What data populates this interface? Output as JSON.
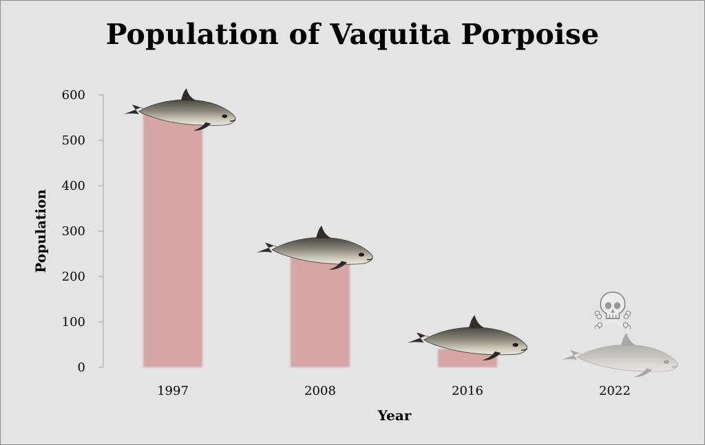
{
  "chart_data": {
    "type": "bar",
    "title": "Population of Vaquita Porpoise",
    "xlabel": "Year",
    "ylabel": "Population",
    "categories": [
      "1997",
      "2008",
      "2016",
      "2022"
    ],
    "values": [
      567,
      245,
      40,
      10
    ],
    "ylim": [
      0,
      600
    ],
    "yticks": [
      0,
      100,
      200,
      300,
      400,
      500,
      600
    ],
    "grid": false,
    "legend": "none",
    "bar_color": "#d6a6a6",
    "annotations": [
      {
        "category": "1997",
        "icon": "vaquita-porpoise-icon"
      },
      {
        "category": "2008",
        "icon": "vaquita-porpoise-icon"
      },
      {
        "category": "2016",
        "icon": "vaquita-porpoise-icon"
      },
      {
        "category": "2022",
        "icon": "faded-vaquita-porpoise-icon"
      },
      {
        "category": "2022",
        "icon": "skull-and-crossbones-icon"
      }
    ]
  }
}
